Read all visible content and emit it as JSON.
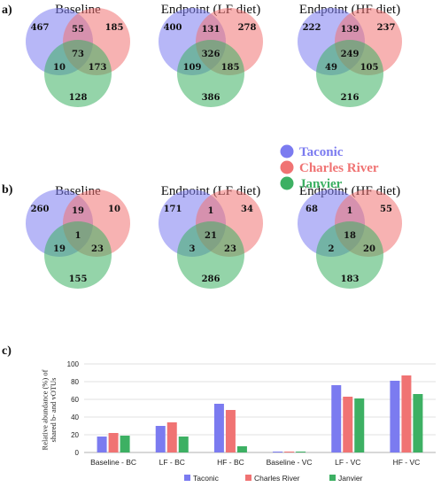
{
  "colors": {
    "taconic": "#7b7bf0",
    "charles_river": "#f07373",
    "janvier": "#3db063"
  },
  "panels": {
    "a": "a)",
    "b": "b)",
    "c": "c)"
  },
  "venn_legend": [
    "Taconic",
    "Charles River",
    "Janvier"
  ],
  "chart_data": [
    {
      "type": "venn",
      "panel": "a",
      "title": "Baseline",
      "regions": {
        "t_only": 467,
        "c_only": 185,
        "j_only": 128,
        "tc": 55,
        "tj": 10,
        "cj": 173,
        "tcj": 73
      }
    },
    {
      "type": "venn",
      "panel": "a",
      "title": "Endpoint (LF diet)",
      "regions": {
        "t_only": 400,
        "c_only": 278,
        "j_only": 386,
        "tc": 131,
        "tj": 109,
        "cj": 185,
        "tcj": 326
      }
    },
    {
      "type": "venn",
      "panel": "a",
      "title": "Endpoint (HF diet)",
      "regions": {
        "t_only": 222,
        "c_only": 237,
        "j_only": 216,
        "tc": 139,
        "tj": 49,
        "cj": 105,
        "tcj": 249
      }
    },
    {
      "type": "venn",
      "panel": "b",
      "title": "Baseline",
      "regions": {
        "t_only": 260,
        "c_only": 10,
        "j_only": 155,
        "tc": 19,
        "tj": 19,
        "cj": 23,
        "tcj": 1
      }
    },
    {
      "type": "venn",
      "panel": "b",
      "title": "Endpoint (LF diet)",
      "regions": {
        "t_only": 171,
        "c_only": 34,
        "j_only": 286,
        "tc": 1,
        "tj": 3,
        "cj": 23,
        "tcj": 21
      }
    },
    {
      "type": "venn",
      "panel": "b",
      "title": "Endpoint (HF diet)",
      "regions": {
        "t_only": 68,
        "c_only": 55,
        "j_only": 183,
        "tc": 1,
        "tj": 2,
        "cj": 20,
        "tcj": 18
      }
    },
    {
      "type": "bar",
      "panel": "c",
      "ylabel": "Relative abundance (%) of shared b- and vOTUs",
      "ylim": [
        0,
        100
      ],
      "yticks": [
        0,
        20,
        40,
        60,
        80,
        100
      ],
      "grid": true,
      "legend": "bottom",
      "categories": [
        "Baseline - BC",
        "LF - BC",
        "HF - BC",
        "Baseline - VC",
        "LF - VC",
        "HF - VC"
      ],
      "series": [
        {
          "name": "Taconic",
          "values": [
            18,
            30,
            55,
            1,
            76,
            81
          ]
        },
        {
          "name": "Charles River",
          "values": [
            22,
            34,
            48,
            1,
            63,
            87
          ]
        },
        {
          "name": "Janvier",
          "values": [
            19,
            18,
            7,
            1,
            61,
            66
          ]
        }
      ]
    }
  ]
}
